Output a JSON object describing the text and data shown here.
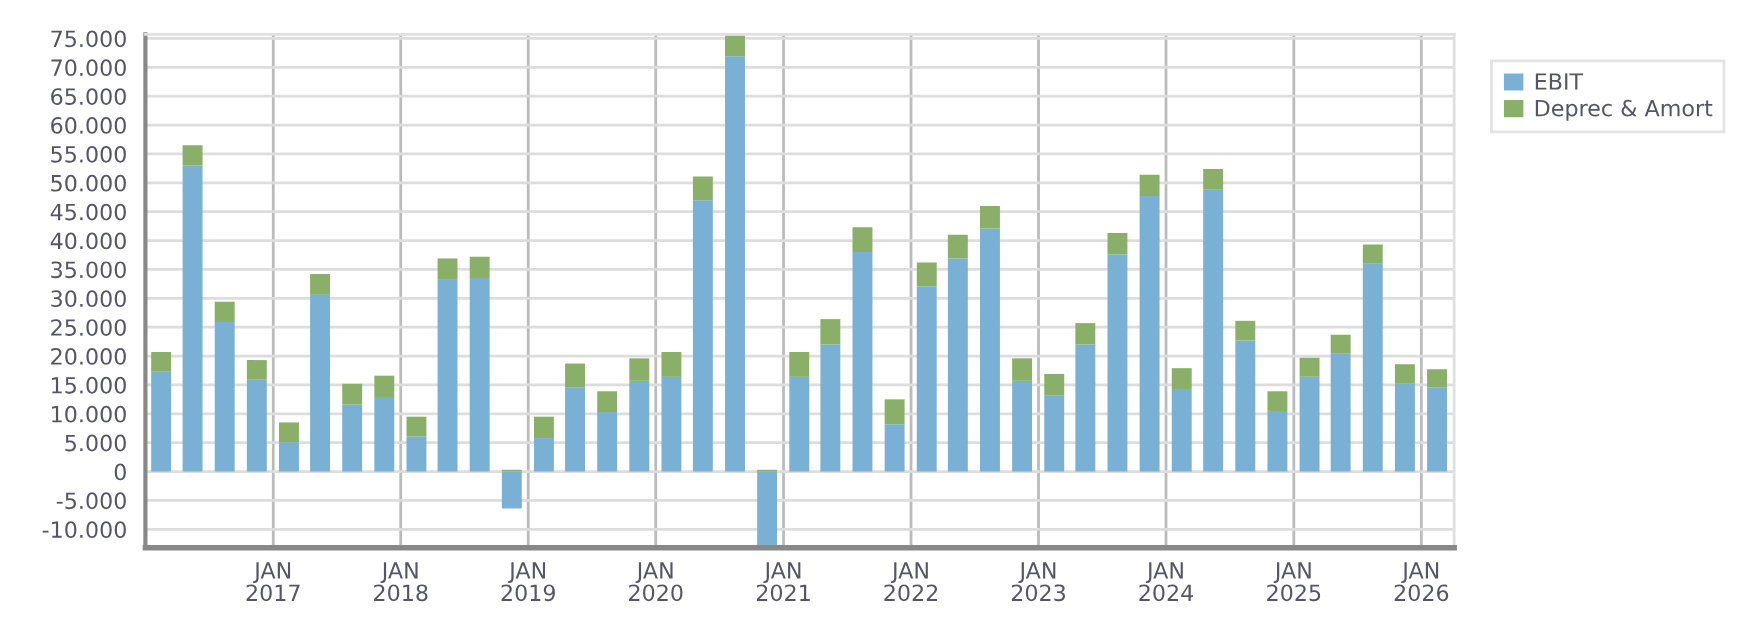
{
  "chart_data": {
    "type": "bar",
    "stacked": true,
    "x": [
      "2016-02-15",
      "2016-05-15",
      "2016-08-15",
      "2016-11-15",
      "2017-02-15",
      "2017-05-15",
      "2017-08-15",
      "2017-11-15",
      "2018-02-15",
      "2018-05-15",
      "2018-08-15",
      "2018-11-15",
      "2019-02-15",
      "2019-05-15",
      "2019-08-15",
      "2019-11-15",
      "2020-02-15",
      "2020-05-15",
      "2020-08-15",
      "2020-11-15",
      "2021-02-15",
      "2021-05-15",
      "2021-08-15",
      "2021-11-15",
      "2022-02-15",
      "2022-05-15",
      "2022-08-15",
      "2022-11-15",
      "2023-02-15",
      "2023-05-15",
      "2023-08-15",
      "2023-11-15",
      "2024-02-15",
      "2024-05-15",
      "2024-08-15",
      "2024-11-15",
      "2025-02-15",
      "2025-05-15",
      "2025-08-15",
      "2025-11-15",
      "2026-02-15"
    ],
    "series": [
      {
        "name": "EBIT",
        "color": "#7ab0d3",
        "values": [
          17300,
          53000,
          25900,
          15900,
          5100,
          30600,
          11600,
          12900,
          6100,
          33200,
          33500,
          -6400,
          5800,
          14600,
          10300,
          15700,
          16400,
          47000,
          71900,
          -13200,
          16400,
          22000,
          38000,
          8200,
          32100,
          36900,
          42100,
          15700,
          13200,
          22000,
          37600,
          47700,
          14300,
          48800,
          22700,
          10500,
          16400,
          20400,
          36000,
          15200,
          14600
        ]
      },
      {
        "name": "Deprec & Amort",
        "color": "#8aaf68",
        "values": [
          3400,
          3500,
          3500,
          3400,
          3400,
          3600,
          3600,
          3700,
          3400,
          3700,
          3700,
          300,
          3700,
          4100,
          3600,
          3900,
          4300,
          4100,
          3600,
          300,
          4300,
          4400,
          4300,
          4300,
          4100,
          4100,
          3900,
          3900,
          3700,
          3700,
          3700,
          3700,
          3600,
          3600,
          3400,
          3400,
          3300,
          3300,
          3300,
          3400,
          3100
        ]
      }
    ],
    "xlim": [
      "2016-01-01",
      "2026-04-05"
    ],
    "xticks": [
      {
        "value": "2017-01-01",
        "label": "JAN\n2017"
      },
      {
        "value": "2018-01-01",
        "label": "JAN\n2018"
      },
      {
        "value": "2019-01-01",
        "label": "JAN\n2019"
      },
      {
        "value": "2020-01-01",
        "label": "JAN\n2020"
      },
      {
        "value": "2021-01-01",
        "label": "JAN\n2021"
      },
      {
        "value": "2022-01-01",
        "label": "JAN\n2022"
      },
      {
        "value": "2023-01-01",
        "label": "JAN\n2023"
      },
      {
        "value": "2024-01-01",
        "label": "JAN\n2024"
      },
      {
        "value": "2025-01-01",
        "label": "JAN\n2025"
      },
      {
        "value": "2026-01-01",
        "label": "JAN\n2026"
      }
    ],
    "ylim": [
      -13200,
      75700
    ],
    "yticks": [
      {
        "value": -10000,
        "label": "-10.000"
      },
      {
        "value": -5000,
        "label": "-5.000"
      },
      0,
      {
        "value": 5000,
        "label": "5.000"
      },
      {
        "value": 10000,
        "label": "10.000"
      },
      {
        "value": 15000,
        "label": "15.000"
      },
      {
        "value": 20000,
        "label": "20.000"
      },
      {
        "value": 25000,
        "label": "25.000"
      },
      {
        "value": 30000,
        "label": "30.000"
      },
      {
        "value": 35000,
        "label": "35.000"
      },
      {
        "value": 40000,
        "label": "40.000"
      },
      {
        "value": 45000,
        "label": "45.000"
      },
      {
        "value": 50000,
        "label": "50.000"
      },
      {
        "value": 55000,
        "label": "55.000"
      },
      {
        "value": 60000,
        "label": "60.000"
      },
      {
        "value": 65000,
        "label": "65.000"
      },
      {
        "value": 70000,
        "label": "70.000"
      },
      {
        "value": 75000,
        "label": "75.000"
      }
    ],
    "grid": true,
    "legend": "right"
  }
}
